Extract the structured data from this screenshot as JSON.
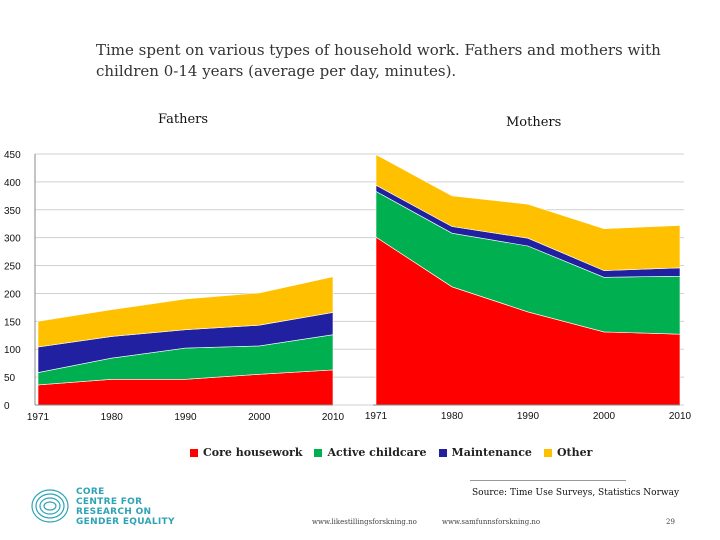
{
  "title": "Time spent on various types of household work. Fathers and mothers with children 0-14 years (average per day, minutes).",
  "source": "Source: Time Use Surveys, Statistics Norway",
  "footer": {
    "url1": "www.likestillingsforskning.no",
    "url2": "www.samfunnsforskning.no",
    "page": "29"
  },
  "logo": {
    "lines": [
      "CORE",
      "CENTRE FOR",
      "RESEARCH ON",
      "GENDER EQUALITY"
    ],
    "color": "#2ea3b6"
  },
  "colors": {
    "core": "#ff0000",
    "childcare": "#00b050",
    "maintenance": "#2020a0",
    "other": "#ffc000"
  },
  "chart_data": [
    {
      "type": "area",
      "stacked": true,
      "title": "Fathers",
      "x": [
        "1971",
        "1980",
        "1990",
        "2000",
        "2010"
      ],
      "ylim": [
        0,
        450
      ],
      "yticks": [
        0,
        50,
        100,
        150,
        200,
        250,
        300,
        350,
        400,
        450
      ],
      "grid": true,
      "series": [
        {
          "name": "Core housework",
          "values": [
            36,
            46,
            46,
            55,
            63
          ]
        },
        {
          "name": "Active childcare",
          "values": [
            22,
            38,
            56,
            51,
            63
          ]
        },
        {
          "name": "Maintenance",
          "values": [
            46,
            39,
            33,
            37,
            40
          ]
        },
        {
          "name": "Other",
          "values": [
            46,
            48,
            55,
            58,
            64
          ]
        }
      ]
    },
    {
      "type": "area",
      "stacked": true,
      "title": "Mothers",
      "x": [
        "1971",
        "1980",
        "1990",
        "2000",
        "2010"
      ],
      "ylim": [
        0,
        450
      ],
      "grid": true,
      "series": [
        {
          "name": "Core housework",
          "values": [
            301,
            212,
            167,
            131,
            127
          ]
        },
        {
          "name": "Active childcare",
          "values": [
            82,
            96,
            118,
            98,
            104
          ]
        },
        {
          "name": "Maintenance",
          "values": [
            11,
            12,
            14,
            12,
            15
          ]
        },
        {
          "name": "Other",
          "values": [
            55,
            55,
            61,
            75,
            76
          ]
        }
      ]
    }
  ],
  "legend": [
    {
      "label": "Core housework",
      "color": "#ff0000"
    },
    {
      "label": "Active childcare",
      "color": "#00b050"
    },
    {
      "label": "Maintenance",
      "color": "#2020a0"
    },
    {
      "label": "Other",
      "color": "#ffc000"
    }
  ]
}
